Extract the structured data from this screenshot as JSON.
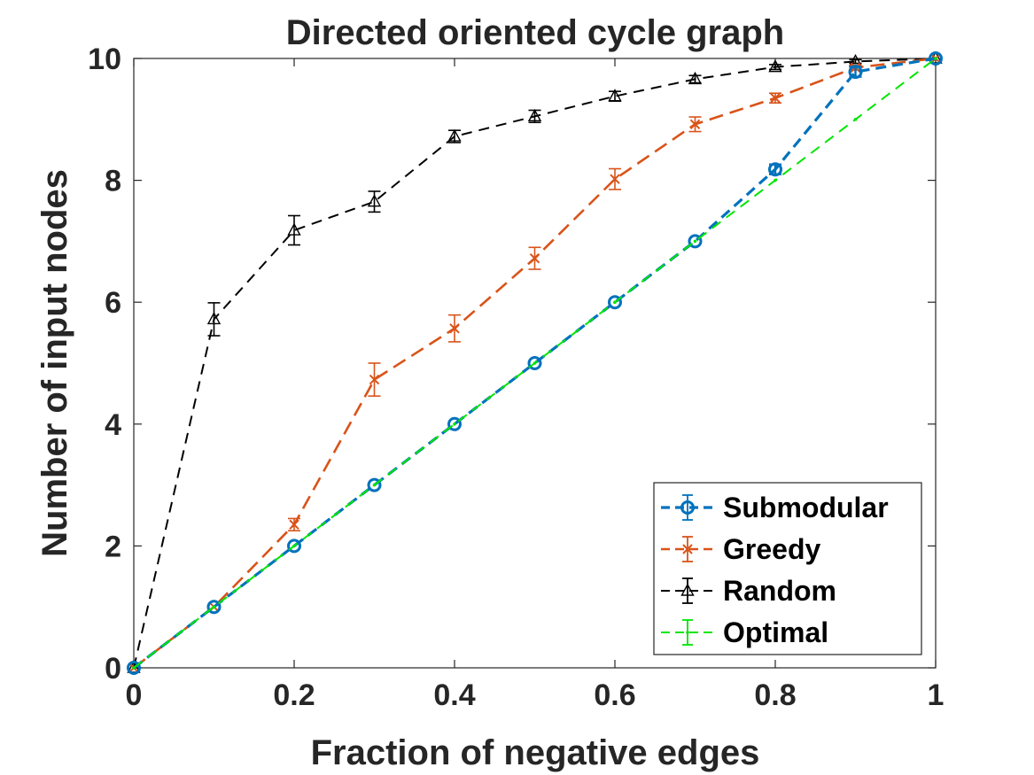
{
  "chart_data": {
    "type": "line",
    "title": "Directed oriented cycle graph",
    "xlabel": "Fraction of negative edges",
    "ylabel": "Number of input nodes",
    "xlim": [
      0,
      1
    ],
    "ylim": [
      0,
      10
    ],
    "x_ticks": [
      0,
      0.2,
      0.4,
      0.6,
      0.8,
      1
    ],
    "x_tick_labels": [
      "0",
      "0.2",
      "0.4",
      "0.6",
      "0.8",
      "1"
    ],
    "y_ticks": [
      0,
      2,
      4,
      6,
      8,
      10
    ],
    "y_tick_labels": [
      "0",
      "2",
      "4",
      "6",
      "8",
      "10"
    ],
    "grid": false,
    "legend_position": "bottom-right",
    "x": [
      0,
      0.1,
      0.2,
      0.3,
      0.4,
      0.5,
      0.6,
      0.7,
      0.8,
      0.9,
      1.0
    ],
    "series": [
      {
        "name": "Submodular",
        "color": "#0072BD",
        "marker": "circle",
        "values": [
          0,
          1,
          2,
          3,
          4,
          5,
          6,
          7,
          8.18,
          9.78,
          10
        ],
        "errors": [
          0,
          0,
          0,
          0,
          0,
          0,
          0,
          0,
          0.08,
          0.08,
          0
        ]
      },
      {
        "name": "Greedy",
        "color": "#D95319",
        "marker": "x",
        "values": [
          0,
          1,
          2.35,
          4.73,
          5.57,
          6.72,
          8.02,
          8.92,
          9.35,
          9.85,
          10
        ],
        "errors": [
          0,
          0,
          0.1,
          0.27,
          0.22,
          0.18,
          0.17,
          0.12,
          0.08,
          0.04,
          0
        ]
      },
      {
        "name": "Random",
        "color": "#000000",
        "marker": "triangle",
        "values": [
          0,
          5.72,
          7.18,
          7.65,
          8.72,
          9.05,
          9.38,
          9.66,
          9.86,
          9.95,
          10
        ],
        "errors": [
          0,
          0.27,
          0.24,
          0.17,
          0.1,
          0.1,
          0.08,
          0.06,
          0.04,
          0.03,
          0
        ]
      },
      {
        "name": "Optimal",
        "color": "#00E600",
        "marker": "dot",
        "values": [
          0,
          1,
          2,
          3,
          4,
          5,
          6,
          7,
          8,
          9,
          10
        ],
        "errors": [
          0,
          0,
          0,
          0,
          0,
          0,
          0,
          0,
          0,
          0,
          0
        ]
      }
    ]
  }
}
